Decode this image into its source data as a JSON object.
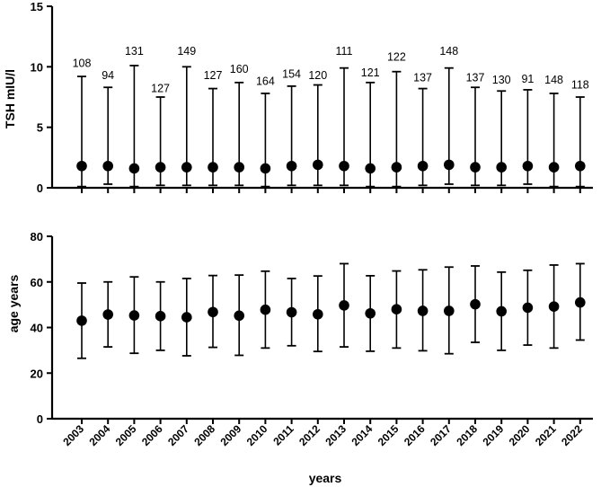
{
  "chart_data": [
    {
      "type": "scatter",
      "errorbars": true,
      "ylabel": "TSH mIU/l",
      "ylim": [
        0,
        15
      ],
      "yticks": [
        0,
        5,
        10,
        15
      ],
      "categories": [
        "2003",
        "2004",
        "2005",
        "2006",
        "2007",
        "2008",
        "2009",
        "2010",
        "2011",
        "2012",
        "2013",
        "2014",
        "2015",
        "2016",
        "2017",
        "2018",
        "2019",
        "2020",
        "2021",
        "2022"
      ],
      "values": [
        1.8,
        1.8,
        1.6,
        1.7,
        1.7,
        1.7,
        1.7,
        1.6,
        1.8,
        1.9,
        1.8,
        1.6,
        1.7,
        1.8,
        1.9,
        1.7,
        1.7,
        1.8,
        1.7,
        1.8
      ],
      "lower": [
        0.1,
        0.3,
        0.1,
        0.2,
        0.2,
        0.2,
        0.2,
        0.1,
        0.2,
        0.2,
        0.2,
        0.1,
        0.1,
        0.2,
        0.3,
        0.2,
        0.2,
        0.3,
        0.1,
        0.1
      ],
      "upper": [
        9.2,
        8.3,
        10.1,
        7.5,
        10.0,
        8.2,
        8.7,
        7.8,
        8.4,
        8.5,
        9.9,
        8.7,
        9.6,
        8.2,
        9.9,
        8.3,
        8.0,
        8.1,
        7.8,
        7.5
      ],
      "annotations": [
        "108",
        "94",
        "131",
        "127",
        "149",
        "127",
        "160",
        "164",
        "154",
        "120",
        "111",
        "121",
        "122",
        "137",
        "148",
        "137",
        "130",
        "91",
        "148",
        "118"
      ],
      "annotation_level": [
        10,
        9,
        11,
        7.9,
        11,
        9,
        9.5,
        8.5,
        9.1,
        9,
        11,
        9.2,
        10.5,
        8.8,
        11,
        8.8,
        8.6,
        8.7,
        8.6,
        8.2
      ],
      "grid": false
    },
    {
      "type": "scatter",
      "errorbars": true,
      "xlabel": "years",
      "ylabel": "age years",
      "ylim": [
        0,
        80
      ],
      "yticks": [
        0,
        20,
        40,
        60,
        80
      ],
      "categories": [
        "2003",
        "2004",
        "2005",
        "2006",
        "2007",
        "2008",
        "2009",
        "2010",
        "2011",
        "2012",
        "2013",
        "2014",
        "2015",
        "2016",
        "2017",
        "2018",
        "2019",
        "2020",
        "2021",
        "2022"
      ],
      "values": [
        43,
        45.7,
        45.3,
        45,
        44.5,
        46.8,
        45.2,
        47.8,
        46.7,
        45.8,
        49.7,
        46.2,
        48,
        47.3,
        47.3,
        50.2,
        47.1,
        48.7,
        49.2,
        51
      ],
      "lower": [
        26.5,
        31.5,
        28.7,
        30,
        27.6,
        31.3,
        27.8,
        31,
        32,
        29.5,
        31.5,
        29.6,
        31,
        29.8,
        28.5,
        33.5,
        30,
        32.3,
        31,
        34.5
      ],
      "upper": [
        59.5,
        60,
        62.2,
        60,
        61.5,
        62.8,
        63,
        64.7,
        61.5,
        62.6,
        68,
        62.7,
        64.8,
        65.3,
        66.5,
        67,
        64.3,
        65.1,
        67.4,
        68
      ],
      "grid": false
    }
  ]
}
